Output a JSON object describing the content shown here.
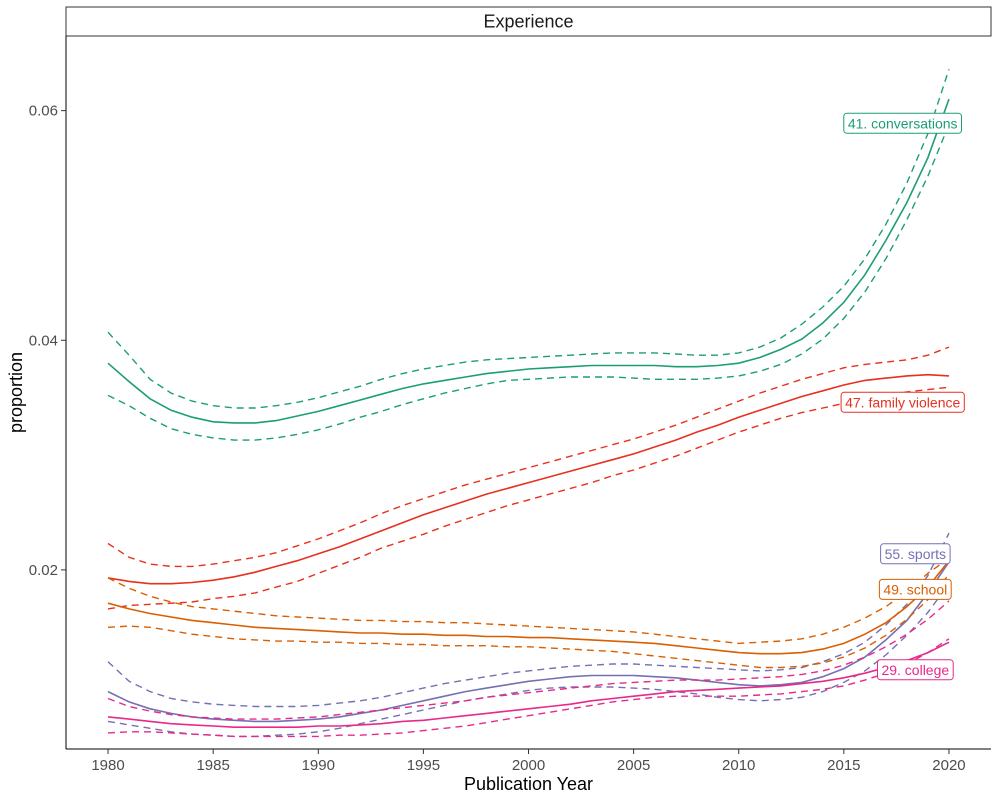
{
  "chart_data": {
    "type": "line",
    "facet_title": "Experience",
    "xlabel": "Publication Year",
    "ylabel": "proportion",
    "xlim": [
      1978,
      2022
    ],
    "ylim": [
      0.0044,
      0.0665
    ],
    "x_ticks": [
      1980,
      1985,
      1990,
      1995,
      2000,
      2005,
      2010,
      2015,
      2020
    ],
    "y_ticks": [
      0.02,
      0.04,
      0.06
    ],
    "y_tick_labels": [
      "0.02",
      "0.04",
      "0.06"
    ],
    "grid": false,
    "legend": "none",
    "x": [
      1980,
      1981,
      1982,
      1983,
      1984,
      1985,
      1986,
      1987,
      1988,
      1989,
      1990,
      1991,
      1992,
      1993,
      1994,
      1995,
      1996,
      1997,
      1998,
      1999,
      2000,
      2001,
      2002,
      2003,
      2004,
      2005,
      2006,
      2007,
      2008,
      2009,
      2010,
      2011,
      2012,
      2013,
      2014,
      2015,
      2016,
      2017,
      2018,
      2019,
      2020
    ],
    "series": [
      {
        "name": "41. conversations",
        "color": "#1b9e77",
        "label_year": 2017.8,
        "label_value": 0.0589,
        "values": [
          0.038,
          0.0364,
          0.0349,
          0.0339,
          0.0333,
          0.0329,
          0.0328,
          0.0328,
          0.033,
          0.0334,
          0.0338,
          0.0343,
          0.0348,
          0.0353,
          0.0358,
          0.0362,
          0.0365,
          0.0368,
          0.0371,
          0.0373,
          0.0375,
          0.0376,
          0.0377,
          0.0378,
          0.0378,
          0.0378,
          0.0378,
          0.0377,
          0.0377,
          0.0378,
          0.038,
          0.0385,
          0.0392,
          0.0401,
          0.0415,
          0.0433,
          0.0457,
          0.0487,
          0.052,
          0.0559,
          0.061
        ],
        "lower": [
          0.0352,
          0.0343,
          0.0332,
          0.0323,
          0.0318,
          0.0315,
          0.0313,
          0.0313,
          0.0315,
          0.0318,
          0.0322,
          0.0327,
          0.0333,
          0.0338,
          0.0344,
          0.0349,
          0.0354,
          0.0358,
          0.0362,
          0.0365,
          0.0366,
          0.0367,
          0.0368,
          0.0368,
          0.0368,
          0.0367,
          0.0366,
          0.0366,
          0.0366,
          0.0367,
          0.0369,
          0.0373,
          0.0379,
          0.0388,
          0.0401,
          0.0419,
          0.0442,
          0.0471,
          0.0505,
          0.0543,
          0.0588
        ],
        "upper": [
          0.0407,
          0.0387,
          0.0366,
          0.0354,
          0.0347,
          0.0343,
          0.0341,
          0.0341,
          0.0343,
          0.0346,
          0.035,
          0.0355,
          0.036,
          0.0366,
          0.0371,
          0.0375,
          0.0378,
          0.0381,
          0.0383,
          0.0384,
          0.0385,
          0.0386,
          0.0387,
          0.0388,
          0.0389,
          0.0389,
          0.0389,
          0.0388,
          0.0387,
          0.0387,
          0.0389,
          0.0394,
          0.0402,
          0.0414,
          0.0429,
          0.0447,
          0.0471,
          0.0501,
          0.0537,
          0.058,
          0.0636
        ]
      },
      {
        "name": "47. family violence",
        "color": "#e7301e",
        "label_year": 2017.8,
        "label_value": 0.0346,
        "values": [
          0.0193,
          0.019,
          0.0188,
          0.0188,
          0.0189,
          0.0191,
          0.0194,
          0.0198,
          0.0203,
          0.0208,
          0.0214,
          0.022,
          0.0227,
          0.0234,
          0.0241,
          0.0248,
          0.0254,
          0.026,
          0.0266,
          0.0271,
          0.0276,
          0.0281,
          0.0286,
          0.0291,
          0.0296,
          0.0301,
          0.0307,
          0.0313,
          0.032,
          0.0326,
          0.0333,
          0.0339,
          0.0345,
          0.0351,
          0.0356,
          0.0361,
          0.0365,
          0.0367,
          0.0369,
          0.037,
          0.0369
        ],
        "lower": [
          0.0166,
          0.0169,
          0.017,
          0.0171,
          0.0172,
          0.0175,
          0.0177,
          0.018,
          0.0185,
          0.019,
          0.0197,
          0.0204,
          0.0211,
          0.0219,
          0.0225,
          0.0231,
          0.0238,
          0.0244,
          0.025,
          0.0256,
          0.0261,
          0.0266,
          0.0271,
          0.0276,
          0.0282,
          0.0287,
          0.0293,
          0.0299,
          0.0306,
          0.0313,
          0.032,
          0.0326,
          0.0332,
          0.0337,
          0.0341,
          0.0345,
          0.0349,
          0.0352,
          0.0355,
          0.0357,
          0.0359
        ],
        "upper": [
          0.0223,
          0.0211,
          0.0205,
          0.0203,
          0.0203,
          0.0205,
          0.0208,
          0.0211,
          0.0215,
          0.0221,
          0.0227,
          0.0234,
          0.0241,
          0.0249,
          0.0256,
          0.0262,
          0.0268,
          0.0274,
          0.0279,
          0.0284,
          0.0289,
          0.0294,
          0.0299,
          0.0304,
          0.0309,
          0.0314,
          0.032,
          0.0326,
          0.0333,
          0.034,
          0.0347,
          0.0354,
          0.036,
          0.0366,
          0.0371,
          0.0376,
          0.0379,
          0.0381,
          0.0383,
          0.0387,
          0.0394
        ]
      },
      {
        "name": "55. sports",
        "color": "#7570b3",
        "label_year": 2018.4,
        "label_value": 0.0214,
        "values": [
          0.0094,
          0.0085,
          0.0079,
          0.0075,
          0.0072,
          0.007,
          0.0069,
          0.0068,
          0.0068,
          0.0069,
          0.007,
          0.0072,
          0.0075,
          0.0078,
          0.0082,
          0.0086,
          0.009,
          0.0094,
          0.0097,
          0.01,
          0.0103,
          0.0105,
          0.0107,
          0.0108,
          0.0108,
          0.0108,
          0.0107,
          0.0106,
          0.0104,
          0.0102,
          0.01,
          0.0099,
          0.01,
          0.0102,
          0.0107,
          0.0114,
          0.0124,
          0.0139,
          0.0156,
          0.018,
          0.0207
        ],
        "lower": [
          0.0068,
          0.0065,
          0.0062,
          0.0059,
          0.0057,
          0.0056,
          0.0055,
          0.0055,
          0.0056,
          0.0057,
          0.0059,
          0.0062,
          0.0066,
          0.007,
          0.0074,
          0.0078,
          0.0082,
          0.0086,
          0.0089,
          0.0092,
          0.0095,
          0.0097,
          0.0098,
          0.0098,
          0.0098,
          0.0097,
          0.0096,
          0.0094,
          0.0092,
          0.0089,
          0.0087,
          0.0086,
          0.0087,
          0.0089,
          0.0094,
          0.0102,
          0.0112,
          0.0126,
          0.0143,
          0.0163,
          0.0188
        ],
        "upper": [
          0.012,
          0.0103,
          0.0094,
          0.0088,
          0.0085,
          0.0083,
          0.0082,
          0.0081,
          0.0081,
          0.0081,
          0.0082,
          0.0084,
          0.0086,
          0.0089,
          0.0093,
          0.0097,
          0.0101,
          0.0104,
          0.0107,
          0.011,
          0.0112,
          0.0114,
          0.0116,
          0.0117,
          0.0118,
          0.0118,
          0.0117,
          0.0116,
          0.0115,
          0.0114,
          0.0113,
          0.0112,
          0.0113,
          0.0115,
          0.012,
          0.0127,
          0.0137,
          0.0152,
          0.017,
          0.0195,
          0.0232
        ]
      },
      {
        "name": "49. school",
        "color": "#d95f02",
        "label_year": 2018.4,
        "label_value": 0.0183,
        "values": [
          0.0171,
          0.0166,
          0.0162,
          0.0159,
          0.0156,
          0.0154,
          0.0152,
          0.015,
          0.0149,
          0.0148,
          0.0147,
          0.0146,
          0.0145,
          0.0145,
          0.0144,
          0.0144,
          0.0143,
          0.0143,
          0.0142,
          0.0142,
          0.0141,
          0.0141,
          0.014,
          0.0139,
          0.0138,
          0.0137,
          0.0136,
          0.0134,
          0.0132,
          0.013,
          0.0128,
          0.0127,
          0.0127,
          0.0128,
          0.0131,
          0.0136,
          0.0144,
          0.0154,
          0.0168,
          0.0185,
          0.0208
        ],
        "lower": [
          0.015,
          0.0151,
          0.015,
          0.0147,
          0.0144,
          0.0142,
          0.014,
          0.0139,
          0.0138,
          0.0138,
          0.0137,
          0.0137,
          0.0136,
          0.0136,
          0.0135,
          0.0135,
          0.0134,
          0.0134,
          0.0134,
          0.0133,
          0.0133,
          0.0132,
          0.0131,
          0.013,
          0.0129,
          0.0127,
          0.0125,
          0.0123,
          0.0121,
          0.0119,
          0.0117,
          0.0115,
          0.0115,
          0.0116,
          0.0119,
          0.0124,
          0.0132,
          0.0143,
          0.0157,
          0.0174,
          0.0196
        ],
        "upper": [
          0.0193,
          0.0184,
          0.0177,
          0.0172,
          0.0168,
          0.0166,
          0.0164,
          0.0162,
          0.016,
          0.0159,
          0.0158,
          0.0157,
          0.0156,
          0.0156,
          0.0155,
          0.0155,
          0.0154,
          0.0154,
          0.0153,
          0.0152,
          0.0151,
          0.015,
          0.0149,
          0.0148,
          0.0147,
          0.0146,
          0.0144,
          0.0142,
          0.014,
          0.0138,
          0.0136,
          0.0137,
          0.0138,
          0.014,
          0.0144,
          0.015,
          0.0158,
          0.0168,
          0.0181,
          0.0197,
          0.021
        ]
      },
      {
        "name": "29. college",
        "color": "#e7298a",
        "label_year": 2018.4,
        "label_value": 0.0113,
        "values": [
          0.0072,
          0.007,
          0.0068,
          0.0066,
          0.0065,
          0.0064,
          0.0063,
          0.0063,
          0.0063,
          0.0063,
          0.0064,
          0.0064,
          0.0065,
          0.0066,
          0.0068,
          0.0069,
          0.0071,
          0.0073,
          0.0075,
          0.0077,
          0.0079,
          0.0081,
          0.0083,
          0.0086,
          0.0088,
          0.009,
          0.0092,
          0.0094,
          0.0095,
          0.0096,
          0.0097,
          0.0098,
          0.0099,
          0.0101,
          0.0103,
          0.0106,
          0.011,
          0.0115,
          0.0121,
          0.0128,
          0.0137
        ],
        "lower": [
          0.0058,
          0.0059,
          0.0059,
          0.0058,
          0.0057,
          0.0056,
          0.0055,
          0.0055,
          0.0055,
          0.0055,
          0.0055,
          0.0056,
          0.0056,
          0.0057,
          0.0058,
          0.006,
          0.0062,
          0.0064,
          0.0067,
          0.007,
          0.0073,
          0.0076,
          0.0079,
          0.0082,
          0.0085,
          0.0087,
          0.0089,
          0.009,
          0.009,
          0.009,
          0.009,
          0.0091,
          0.0092,
          0.0094,
          0.0096,
          0.0099,
          0.0104,
          0.011,
          0.0118,
          0.0128,
          0.014
        ],
        "upper": [
          0.0088,
          0.0081,
          0.0077,
          0.0074,
          0.0072,
          0.0071,
          0.007,
          0.007,
          0.007,
          0.0071,
          0.0072,
          0.0074,
          0.0076,
          0.0078,
          0.008,
          0.0082,
          0.0084,
          0.0086,
          0.0089,
          0.0091,
          0.0093,
          0.0095,
          0.0097,
          0.0099,
          0.0101,
          0.0102,
          0.0103,
          0.0104,
          0.0104,
          0.0104,
          0.0105,
          0.0106,
          0.0107,
          0.0109,
          0.0112,
          0.0117,
          0.0124,
          0.0133,
          0.0144,
          0.0157,
          0.0173
        ]
      }
    ]
  }
}
